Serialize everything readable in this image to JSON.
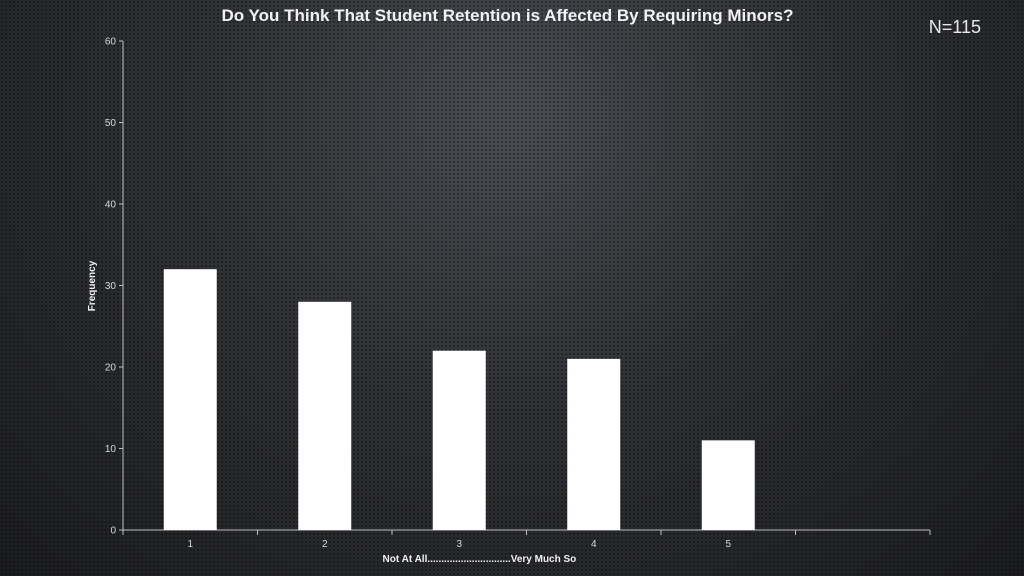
{
  "header": {
    "title": "Do You Think That Student Retention is Affected By Requiring Minors?",
    "n_label": "N=115"
  },
  "chart_data": {
    "type": "bar",
    "title": "Do You Think That Student Retention is Affected By Requiring Minors?",
    "categories": [
      "1",
      "2",
      "3",
      "4",
      "5"
    ],
    "values": [
      32,
      28,
      22,
      21,
      11
    ],
    "xlabel": "Not At All..............................Very Much So",
    "ylabel": "Frequency",
    "ylim": [
      0,
      60
    ],
    "yticks": [
      0,
      10,
      20,
      30,
      40,
      50,
      60
    ],
    "grid": false,
    "legend": "none",
    "bar_color": "#ffffff",
    "axis_color": "#bfbfbf"
  }
}
